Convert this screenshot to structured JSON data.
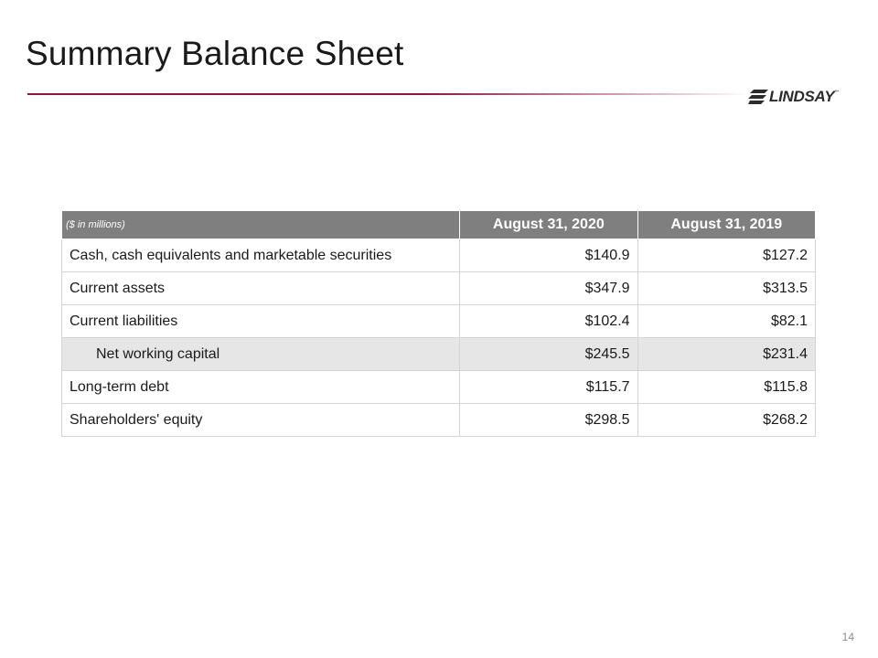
{
  "slide": {
    "title": "Summary Balance Sheet",
    "page_number": "14"
  },
  "logo": {
    "text": "LINDSAY",
    "tm": "™",
    "brand_color": "#8b1a3a"
  },
  "table": {
    "unit_label": "($ in millions)",
    "columns": [
      "August 31, 2020",
      "August 31, 2019"
    ],
    "rows": [
      {
        "label": "Cash, cash equivalents and marketable securities",
        "values": [
          "$140.9",
          "$127.2"
        ]
      },
      {
        "label": "Current assets",
        "values": [
          "$347.9",
          "$313.5"
        ]
      },
      {
        "label": "Current liabilities",
        "values": [
          "$102.4",
          "$82.1"
        ]
      },
      {
        "label": "Net working capital",
        "values": [
          "$245.5",
          "$231.4"
        ]
      },
      {
        "label": "Long-term debt",
        "values": [
          "$115.7",
          "$115.8"
        ]
      },
      {
        "label": "Shareholders' equity",
        "values": [
          "$298.5",
          "$268.2"
        ]
      }
    ],
    "header_bg": "#7f7f7f",
    "highlight_bg": "#e6e6e6"
  }
}
